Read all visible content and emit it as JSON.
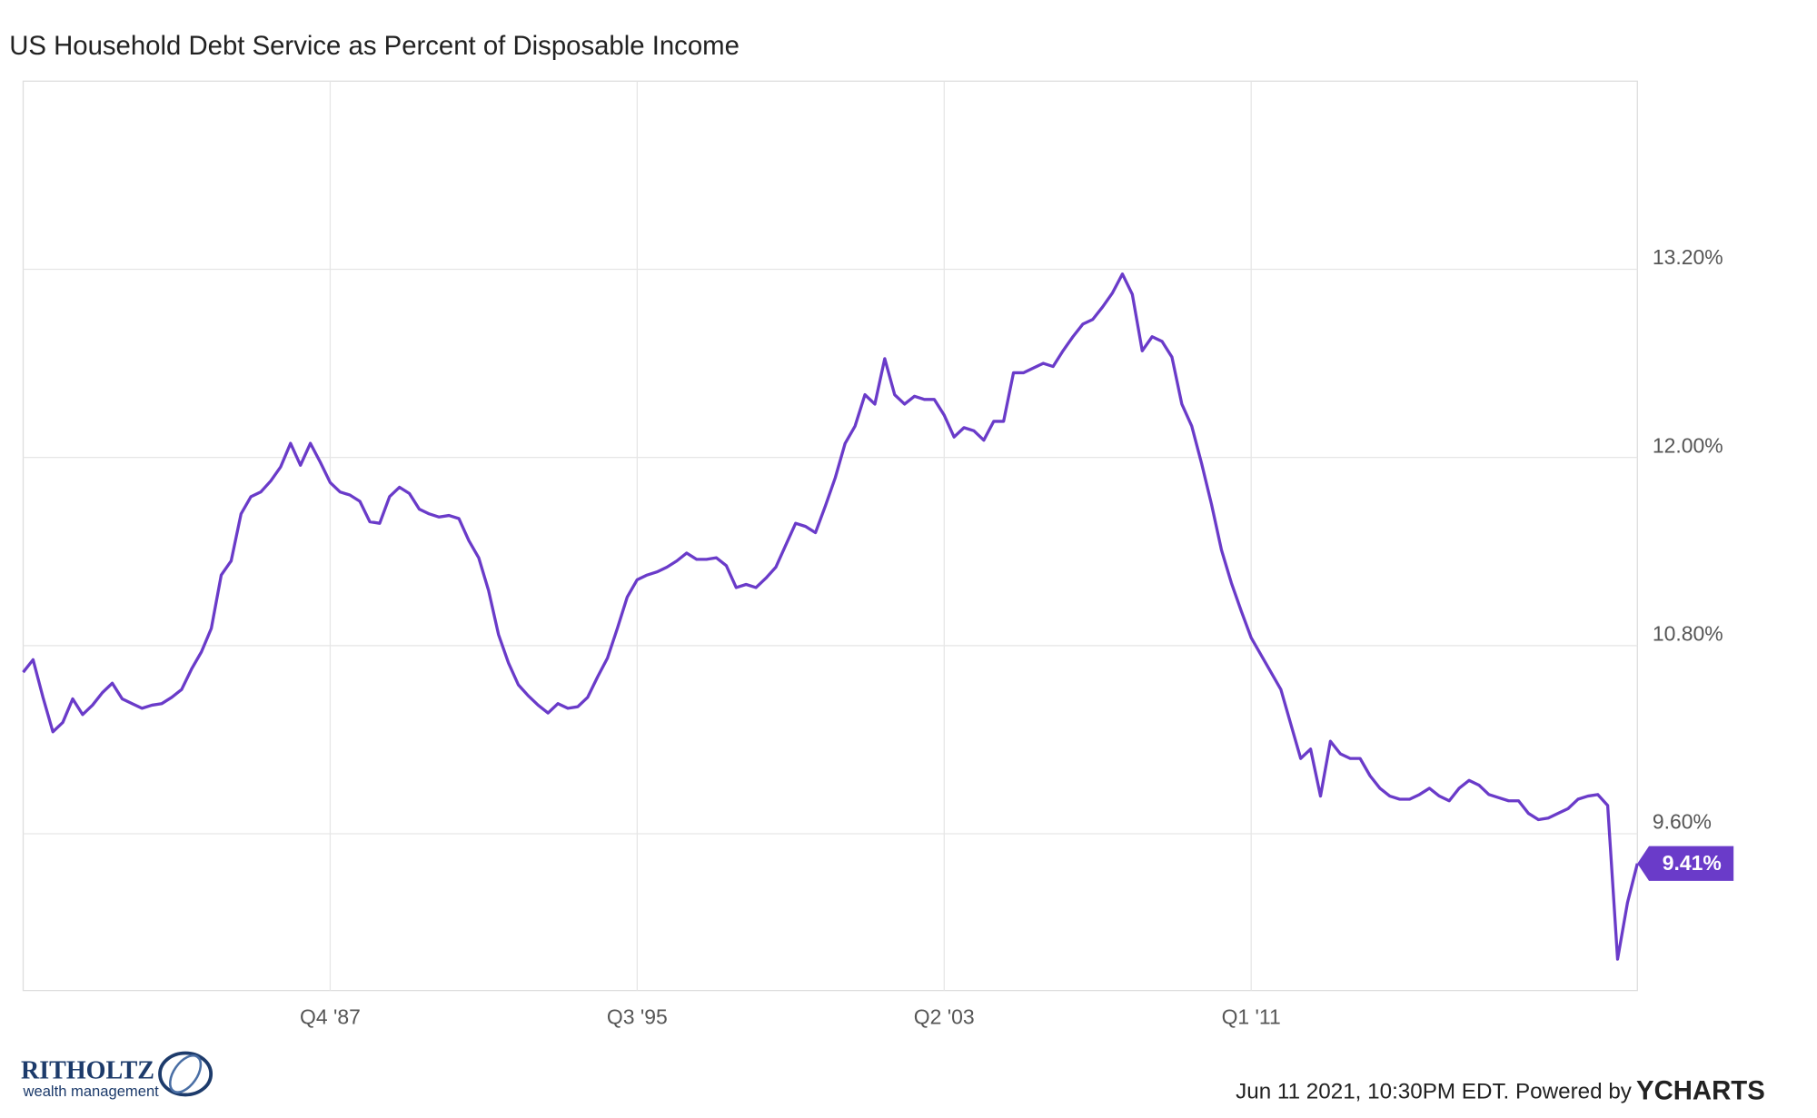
{
  "chart_data": {
    "type": "line",
    "title": "US Household Debt Service as Percent of Disposable Income",
    "categories": [
      null,
      null,
      null,
      null,
      null,
      null,
      null,
      null,
      null,
      null,
      null,
      null,
      null,
      null,
      null,
      null,
      null,
      null,
      null,
      null,
      null,
      null,
      null,
      null,
      null,
      null,
      null,
      null,
      null,
      null,
      null,
      "Q4 '87",
      null,
      null,
      null,
      null,
      null,
      null,
      null,
      null,
      null,
      null,
      null,
      null,
      null,
      null,
      null,
      null,
      null,
      null,
      null,
      null,
      null,
      null,
      null,
      null,
      null,
      null,
      null,
      null,
      null,
      null,
      "Q3 '95",
      null,
      null,
      null,
      null,
      null,
      null,
      null,
      null,
      null,
      null,
      null,
      null,
      null,
      null,
      null,
      null,
      null,
      null,
      null,
      null,
      null,
      null,
      null,
      null,
      null,
      null,
      null,
      null,
      null,
      null,
      "Q2 '03",
      null,
      null,
      null,
      null,
      null,
      null,
      null,
      null,
      null,
      null,
      null,
      null,
      null,
      null,
      null,
      null,
      null,
      null,
      null,
      null,
      null,
      null,
      null,
      null,
      null,
      null,
      null,
      null,
      null,
      null,
      "Q1 '11",
      null,
      null,
      null,
      null,
      null,
      null,
      null,
      null,
      null,
      null,
      null,
      null,
      null,
      null,
      null,
      null,
      null,
      null,
      null,
      null,
      null,
      null,
      null,
      null,
      null,
      null,
      null,
      null,
      null,
      null,
      null,
      null,
      null,
      null,
      null,
      null,
      null,
      null,
      null
    ],
    "series": [
      {
        "color": "#6a3bc9",
        "values": [
          10.63,
          10.71,
          10.47,
          10.25,
          10.31,
          10.46,
          10.36,
          10.42,
          10.5,
          10.56,
          10.46,
          10.43,
          10.4,
          10.42,
          10.43,
          10.47,
          10.52,
          10.65,
          10.76,
          10.91,
          11.25,
          11.34,
          11.64,
          11.75,
          11.78,
          11.85,
          11.94,
          12.09,
          11.95,
          12.09,
          11.97,
          11.84,
          11.78,
          11.76,
          11.72,
          11.59,
          11.58,
          11.75,
          11.81,
          11.77,
          11.67,
          11.64,
          11.62,
          11.63,
          11.61,
          11.47,
          11.36,
          11.15,
          10.87,
          10.69,
          10.55,
          10.48,
          10.42,
          10.37,
          10.43,
          10.4,
          10.41,
          10.47,
          10.6,
          10.72,
          10.91,
          11.11,
          11.22,
          11.25,
          11.27,
          11.3,
          11.34,
          11.39,
          11.35,
          11.35,
          11.36,
          11.31,
          11.17,
          11.19,
          11.17,
          11.23,
          11.3,
          11.44,
          11.58,
          11.56,
          11.52,
          11.69,
          11.87,
          12.09,
          12.2,
          12.4,
          12.34,
          12.63,
          12.4,
          12.34,
          12.39,
          12.37,
          12.37,
          12.27,
          12.13,
          12.19,
          12.17,
          12.11,
          12.23,
          12.23,
          12.54,
          12.54,
          12.57,
          12.6,
          12.58,
          12.68,
          12.77,
          12.85,
          12.88,
          12.96,
          13.05,
          13.17,
          13.04,
          12.68,
          12.77,
          12.74,
          12.64,
          12.34,
          12.2,
          11.96,
          11.7,
          11.41,
          11.2,
          11.02,
          10.85,
          10.74,
          10.63,
          10.52,
          10.3,
          10.08,
          10.14,
          9.84,
          10.19,
          10.11,
          10.08,
          10.08,
          9.97,
          9.89,
          9.84,
          9.82,
          9.82,
          9.85,
          9.89,
          9.84,
          9.81,
          9.89,
          9.94,
          9.91,
          9.85,
          9.83,
          9.81,
          9.81,
          9.73,
          9.69,
          9.7,
          9.73,
          9.76,
          9.82,
          9.84,
          9.85,
          9.78,
          8.8,
          9.16,
          9.41
        ],
        "value_labels": [
          null,
          null,
          null,
          null,
          null,
          null,
          null,
          null,
          null,
          null,
          null,
          null,
          null,
          null,
          null,
          null,
          null,
          null,
          null,
          null,
          null,
          null,
          null,
          null,
          null,
          null,
          null,
          null,
          null,
          null,
          null,
          null,
          null,
          null,
          null,
          null,
          null,
          null,
          null,
          null,
          null,
          null,
          null,
          null,
          null,
          null,
          null,
          null,
          null,
          null,
          null,
          null,
          null,
          null,
          null,
          null,
          null,
          null,
          null,
          null,
          null,
          null,
          null,
          null,
          null,
          null,
          null,
          null,
          null,
          null,
          null,
          null,
          null,
          null,
          null,
          null,
          null,
          null,
          null,
          null,
          null,
          null,
          null,
          null,
          null,
          null,
          null,
          null,
          null,
          null,
          null,
          null,
          null,
          null,
          null,
          null,
          null,
          null,
          null,
          null,
          null,
          null,
          null,
          null,
          null,
          null,
          null,
          null,
          null,
          null,
          null,
          null,
          null,
          null,
          null,
          null,
          null,
          null,
          null,
          null,
          null,
          null,
          null,
          null,
          null,
          null,
          null,
          null,
          null,
          null,
          null,
          null,
          null,
          null,
          null,
          null,
          null,
          null,
          null,
          null,
          null,
          null,
          null,
          null,
          null,
          null,
          null,
          null,
          null,
          null,
          null,
          null,
          null,
          null,
          null,
          null,
          null,
          null,
          null,
          null,
          null,
          null,
          null,
          "9.41%"
        ]
      }
    ],
    "ylim": [
      8.6,
      14.4
    ],
    "yticks": [
      {
        "value": 9.6,
        "label": "9.60%"
      },
      {
        "value": 10.8,
        "label": "10.80%"
      },
      {
        "value": 12.0,
        "label": "12.00%"
      },
      {
        "value": 13.2,
        "label": "13.20%"
      }
    ],
    "grid": true
  },
  "footer": {
    "timestamp": "Jun 11 2021, 10:30PM EDT. Powered by",
    "brand": "YCHARTS",
    "logo_name": "RITHOLTZ",
    "logo_sub": "wealth management"
  }
}
